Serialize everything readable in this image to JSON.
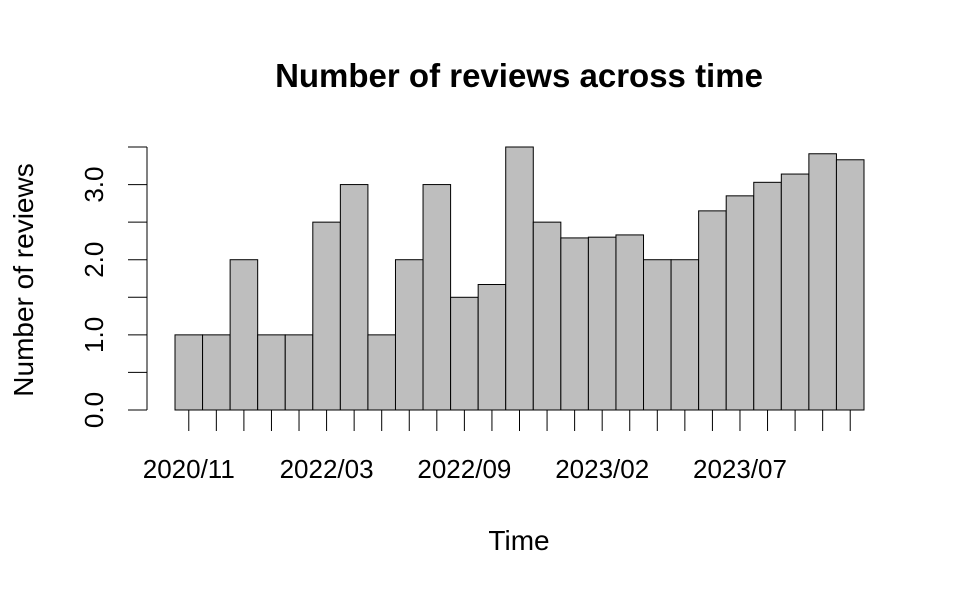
{
  "chart_data": {
    "type": "bar",
    "title": "Number of reviews across time",
    "xlabel": "Time",
    "ylabel": "Number of reviews",
    "ylim": [
      0,
      3.5
    ],
    "y_ticks": [
      "0.0",
      "1.0",
      "2.0",
      "3.0"
    ],
    "x_tick_labels": [
      "2020/11",
      "2022/03",
      "2022/09",
      "2023/02",
      "2023/07"
    ],
    "values": [
      1,
      1,
      2,
      1,
      1,
      2.5,
      3,
      1,
      2,
      3,
      1.5,
      1.67,
      3.5,
      2.5,
      2.29,
      2.3,
      2.33,
      2,
      2,
      2.65,
      2.85,
      3.03,
      3.14,
      3.41,
      3.33
    ],
    "bar_color": "#bebebe",
    "border_color": "#000000",
    "grid": false,
    "legend": "none"
  }
}
